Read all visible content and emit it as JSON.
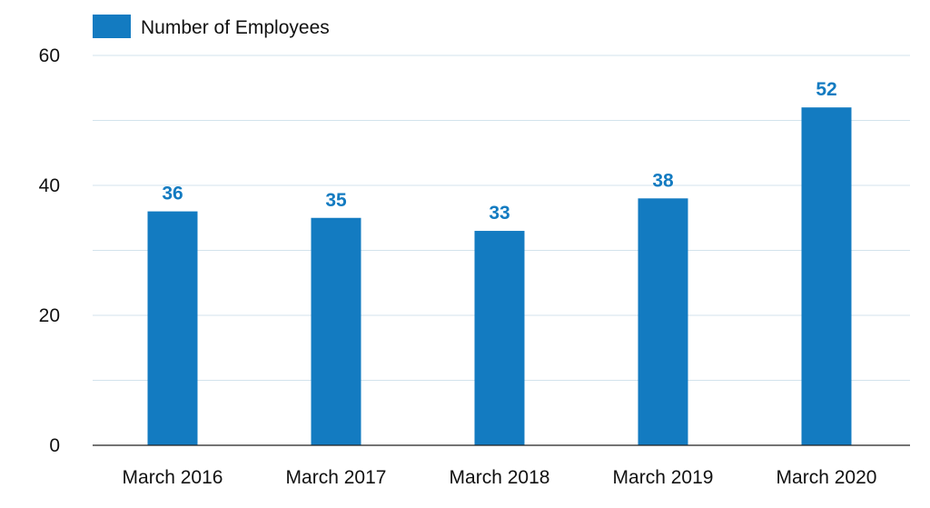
{
  "chart_data": {
    "type": "bar",
    "categories": [
      "March 2016",
      "March 2017",
      "March 2018",
      "March 2019",
      "March 2020"
    ],
    "series": [
      {
        "name": "Number of Employees",
        "values": [
          36,
          35,
          33,
          38,
          52
        ],
        "color": "#137bc1"
      }
    ],
    "title": "",
    "xlabel": "",
    "ylabel": "",
    "ylim": [
      0,
      60
    ],
    "yticks": [
      0,
      20,
      40,
      60
    ],
    "grid": true,
    "data_labels": true,
    "legend_position": "top-left"
  }
}
